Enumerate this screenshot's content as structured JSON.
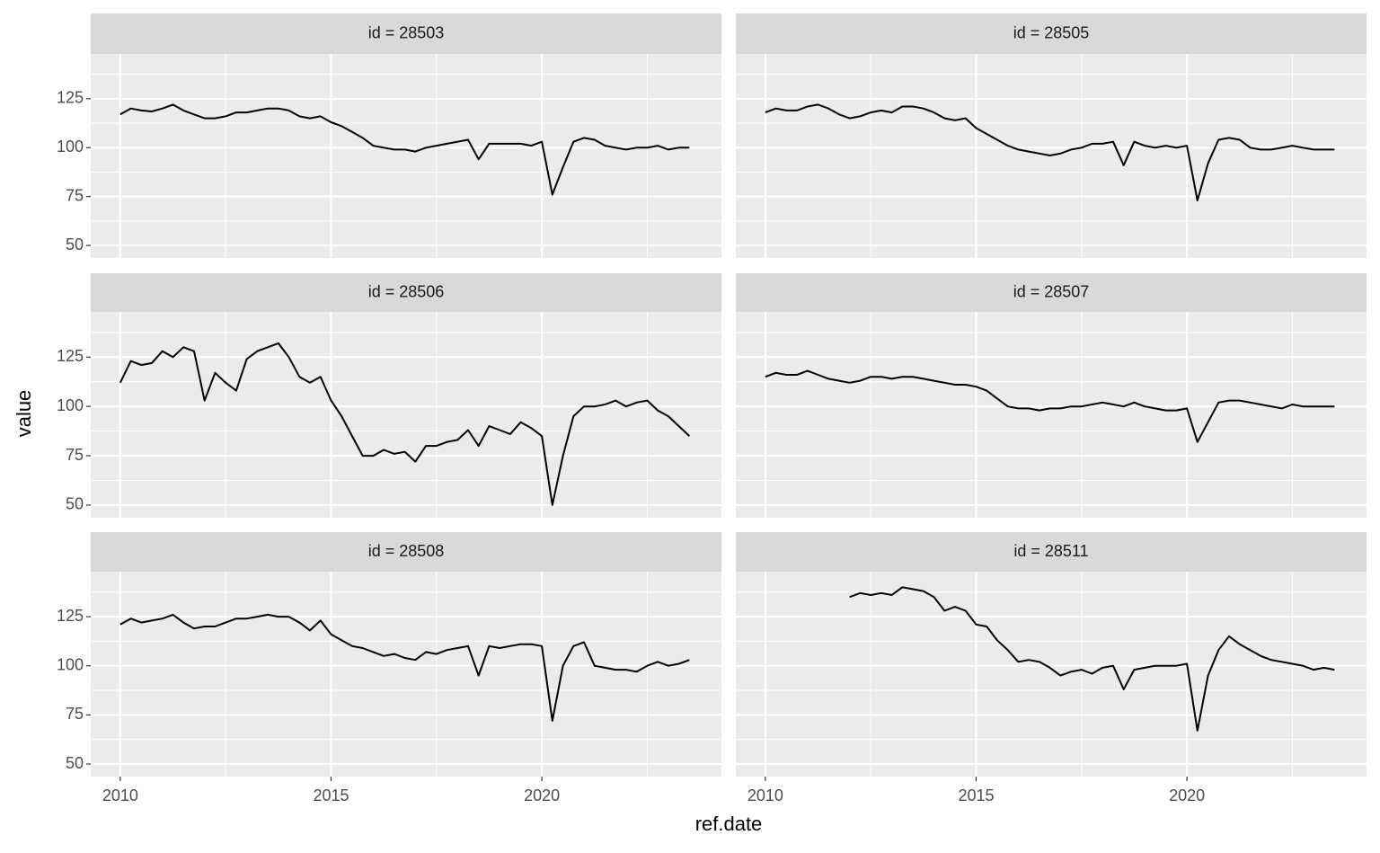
{
  "x_label": "ref.date",
  "y_label": "value",
  "chart_data": [
    {
      "type": "line",
      "title": "id = 28503",
      "color": "#000000",
      "x": [
        2010,
        2010.25,
        2010.5,
        2010.75,
        2011,
        2011.25,
        2011.5,
        2011.75,
        2012,
        2012.25,
        2012.5,
        2012.75,
        2013,
        2013.25,
        2013.5,
        2013.75,
        2014,
        2014.25,
        2014.5,
        2014.75,
        2015,
        2015.25,
        2015.5,
        2015.75,
        2016,
        2016.25,
        2016.5,
        2016.75,
        2017,
        2017.25,
        2017.5,
        2017.75,
        2018,
        2018.25,
        2018.5,
        2018.75,
        2019,
        2019.25,
        2019.5,
        2019.75,
        2020,
        2020.25,
        2020.5,
        2020.75,
        2021,
        2021.25,
        2021.5,
        2021.75,
        2022,
        2022.25,
        2022.5,
        2022.75,
        2023,
        2023.25,
        2023.5
      ],
      "values": [
        117,
        120,
        119,
        118.5,
        120,
        122,
        119,
        117,
        115,
        115,
        116,
        118,
        118,
        119,
        120,
        120,
        119,
        116,
        115,
        116,
        113,
        111,
        108,
        105,
        101,
        100,
        99,
        99,
        98,
        100,
        101,
        102,
        103,
        104,
        94,
        102,
        102,
        102,
        102,
        101,
        103,
        76,
        90,
        103,
        105,
        104,
        101,
        100,
        99,
        100,
        100,
        101,
        99,
        100,
        100
      ],
      "xlim": [
        2009.3,
        2024.26
      ],
      "ylim": [
        43.6,
        147.9
      ],
      "xticks": [
        2010,
        2015,
        2020
      ],
      "yticks": [
        50,
        75,
        100,
        125
      ],
      "minor_xticks": [
        2012.5,
        2017.5,
        2022.5
      ],
      "minor_yticks": [
        62.5,
        87.5,
        112.5,
        137.5
      ]
    },
    {
      "type": "line",
      "title": "id = 28505",
      "color": "#000000",
      "x": [
        2010,
        2010.25,
        2010.5,
        2010.75,
        2011,
        2011.25,
        2011.5,
        2011.75,
        2012,
        2012.25,
        2012.5,
        2012.75,
        2013,
        2013.25,
        2013.5,
        2013.75,
        2014,
        2014.25,
        2014.5,
        2014.75,
        2015,
        2015.25,
        2015.5,
        2015.75,
        2016,
        2016.25,
        2016.5,
        2016.75,
        2017,
        2017.25,
        2017.5,
        2017.75,
        2018,
        2018.25,
        2018.5,
        2018.75,
        2019,
        2019.25,
        2019.5,
        2019.75,
        2020,
        2020.25,
        2020.5,
        2020.75,
        2021,
        2021.25,
        2021.5,
        2021.75,
        2022,
        2022.25,
        2022.5,
        2022.75,
        2023,
        2023.25,
        2023.5
      ],
      "values": [
        118,
        120,
        119,
        119,
        121,
        122,
        120,
        117,
        115,
        116,
        118,
        119,
        118,
        121,
        121,
        120,
        118,
        115,
        114,
        115,
        110,
        107,
        104,
        101,
        99,
        98,
        97,
        96,
        97,
        99,
        100,
        102,
        102,
        103,
        91,
        103,
        101,
        100,
        101,
        100,
        101,
        73,
        92,
        104,
        105,
        104,
        100,
        99,
        99,
        100,
        101,
        100,
        99,
        99,
        99
      ],
      "xlim": [
        2009.3,
        2024.26
      ],
      "ylim": [
        43.6,
        147.9
      ],
      "xticks": [
        2010,
        2015,
        2020
      ],
      "yticks": [
        50,
        75,
        100,
        125
      ],
      "minor_xticks": [
        2012.5,
        2017.5,
        2022.5
      ],
      "minor_yticks": [
        62.5,
        87.5,
        112.5,
        137.5
      ]
    },
    {
      "type": "line",
      "title": "id = 28506",
      "color": "#000000",
      "x": [
        2010,
        2010.25,
        2010.5,
        2010.75,
        2011,
        2011.25,
        2011.5,
        2011.75,
        2012,
        2012.25,
        2012.5,
        2012.75,
        2013,
        2013.25,
        2013.5,
        2013.75,
        2014,
        2014.25,
        2014.5,
        2014.75,
        2015,
        2015.25,
        2015.5,
        2015.75,
        2016,
        2016.25,
        2016.5,
        2016.75,
        2017,
        2017.25,
        2017.5,
        2017.75,
        2018,
        2018.25,
        2018.5,
        2018.75,
        2019,
        2019.25,
        2019.5,
        2019.75,
        2020,
        2020.25,
        2020.5,
        2020.75,
        2021,
        2021.25,
        2021.5,
        2021.75,
        2022,
        2022.25,
        2022.5,
        2022.75,
        2023,
        2023.25,
        2023.5
      ],
      "values": [
        112,
        123,
        121,
        122,
        128,
        125,
        130,
        128,
        103,
        117,
        112,
        108,
        124,
        128,
        130,
        132,
        125,
        115,
        112,
        115,
        103,
        95,
        85,
        75,
        75,
        78,
        76,
        77,
        72,
        80,
        80,
        82,
        83,
        88,
        80,
        90,
        88,
        86,
        92,
        89,
        85,
        50,
        75,
        95,
        100,
        100,
        101,
        103,
        100,
        102,
        103,
        98,
        95,
        90,
        85
      ],
      "xlim": [
        2009.3,
        2024.26
      ],
      "ylim": [
        43.6,
        147.9
      ],
      "xticks": [
        2010,
        2015,
        2020
      ],
      "yticks": [
        50,
        75,
        100,
        125
      ],
      "minor_xticks": [
        2012.5,
        2017.5,
        2022.5
      ],
      "minor_yticks": [
        62.5,
        87.5,
        112.5,
        137.5
      ]
    },
    {
      "type": "line",
      "title": "id = 28507",
      "color": "#000000",
      "x": [
        2010,
        2010.25,
        2010.5,
        2010.75,
        2011,
        2011.25,
        2011.5,
        2011.75,
        2012,
        2012.25,
        2012.5,
        2012.75,
        2013,
        2013.25,
        2013.5,
        2013.75,
        2014,
        2014.25,
        2014.5,
        2014.75,
        2015,
        2015.25,
        2015.5,
        2015.75,
        2016,
        2016.25,
        2016.5,
        2016.75,
        2017,
        2017.25,
        2017.5,
        2017.75,
        2018,
        2018.25,
        2018.5,
        2018.75,
        2019,
        2019.25,
        2019.5,
        2019.75,
        2020,
        2020.25,
        2020.5,
        2020.75,
        2021,
        2021.25,
        2021.5,
        2021.75,
        2022,
        2022.25,
        2022.5,
        2022.75,
        2023,
        2023.25,
        2023.5
      ],
      "values": [
        115,
        117,
        116,
        116,
        118,
        116,
        114,
        113,
        112,
        113,
        115,
        115,
        114,
        115,
        115,
        114,
        113,
        112,
        111,
        111,
        110,
        108,
        104,
        100,
        99,
        99,
        98,
        99,
        99,
        100,
        100,
        101,
        102,
        101,
        100,
        102,
        100,
        99,
        98,
        98,
        99,
        82,
        92,
        102,
        103,
        103,
        102,
        101,
        100,
        99,
        101,
        100,
        100,
        100,
        100
      ],
      "xlim": [
        2009.3,
        2024.26
      ],
      "ylim": [
        43.6,
        147.9
      ],
      "xticks": [
        2010,
        2015,
        2020
      ],
      "yticks": [
        50,
        75,
        100,
        125
      ],
      "minor_xticks": [
        2012.5,
        2017.5,
        2022.5
      ],
      "minor_yticks": [
        62.5,
        87.5,
        112.5,
        137.5
      ]
    },
    {
      "type": "line",
      "title": "id = 28508",
      "color": "#000000",
      "x": [
        2010,
        2010.25,
        2010.5,
        2010.75,
        2011,
        2011.25,
        2011.5,
        2011.75,
        2012,
        2012.25,
        2012.5,
        2012.75,
        2013,
        2013.25,
        2013.5,
        2013.75,
        2014,
        2014.25,
        2014.5,
        2014.75,
        2015,
        2015.25,
        2015.5,
        2015.75,
        2016,
        2016.25,
        2016.5,
        2016.75,
        2017,
        2017.25,
        2017.5,
        2017.75,
        2018,
        2018.25,
        2018.5,
        2018.75,
        2019,
        2019.25,
        2019.5,
        2019.75,
        2020,
        2020.25,
        2020.5,
        2020.75,
        2021,
        2021.25,
        2021.5,
        2021.75,
        2022,
        2022.25,
        2022.5,
        2022.75,
        2023,
        2023.25,
        2023.5
      ],
      "values": [
        121,
        124,
        122,
        123,
        124,
        126,
        122,
        119,
        120,
        120,
        122,
        124,
        124,
        125,
        126,
        125,
        125,
        122,
        118,
        123,
        116,
        113,
        110,
        109,
        107,
        105,
        106,
        104,
        103,
        107,
        106,
        108,
        109,
        110,
        95,
        110,
        109,
        110,
        111,
        111,
        110,
        72,
        100,
        110,
        112,
        100,
        99,
        98,
        98,
        97,
        100,
        102,
        100,
        101,
        103
      ],
      "xlim": [
        2009.3,
        2024.26
      ],
      "ylim": [
        43.6,
        147.9
      ],
      "xticks": [
        2010,
        2015,
        2020
      ],
      "yticks": [
        50,
        75,
        100,
        125
      ],
      "minor_xticks": [
        2012.5,
        2017.5,
        2022.5
      ],
      "minor_yticks": [
        62.5,
        87.5,
        112.5,
        137.5
      ]
    },
    {
      "type": "line",
      "title": "id = 28511",
      "color": "#000000",
      "x": [
        2010,
        2010.25,
        2010.5,
        2010.75,
        2011,
        2011.25,
        2011.5,
        2011.75,
        2012,
        2012.25,
        2012.5,
        2012.75,
        2013,
        2013.25,
        2013.5,
        2013.75,
        2014,
        2014.25,
        2014.5,
        2014.75,
        2015,
        2015.25,
        2015.5,
        2015.75,
        2016,
        2016.25,
        2016.5,
        2016.75,
        2017,
        2017.25,
        2017.5,
        2017.75,
        2018,
        2018.25,
        2018.5,
        2018.75,
        2019,
        2019.25,
        2019.5,
        2019.75,
        2020,
        2020.25,
        2020.5,
        2020.75,
        2021,
        2021.25,
        2021.5,
        2021.75,
        2022,
        2022.25,
        2022.5,
        2022.75,
        2023,
        2023.25,
        2023.5
      ],
      "values": [
        null,
        null,
        null,
        null,
        null,
        null,
        null,
        null,
        135,
        137,
        136,
        137,
        136,
        140,
        139,
        138,
        135,
        128,
        130,
        128,
        121,
        120,
        113,
        108,
        102,
        103,
        102,
        99,
        95,
        97,
        98,
        96,
        99,
        100,
        88,
        98,
        99,
        100,
        100,
        100,
        101,
        67,
        95,
        108,
        115,
        111,
        108,
        105,
        103,
        102,
        101,
        100,
        98,
        99,
        98
      ],
      "xlim": [
        2009.3,
        2024.26
      ],
      "ylim": [
        43.6,
        147.9
      ],
      "xticks": [
        2010,
        2015,
        2020
      ],
      "yticks": [
        50,
        75,
        100,
        125
      ],
      "minor_xticks": [
        2012.5,
        2017.5,
        2022.5
      ],
      "minor_yticks": [
        62.5,
        87.5,
        112.5,
        137.5
      ]
    }
  ]
}
